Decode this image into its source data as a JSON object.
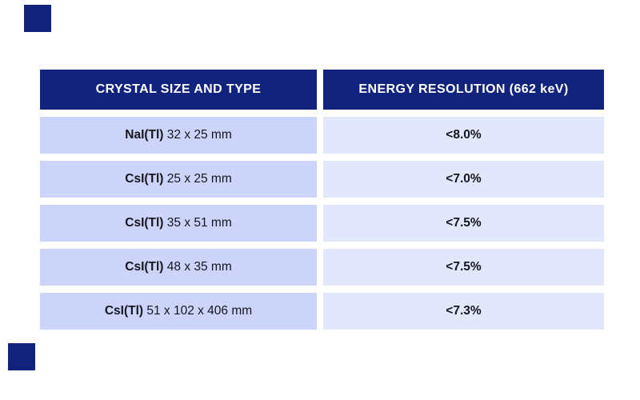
{
  "page": {
    "background": "#ffffff"
  },
  "decor": {
    "accent_color": "#12237d",
    "squares": [
      "top-left",
      "bottom-left"
    ]
  },
  "table": {
    "colors": {
      "header_bg": "#12237d",
      "header_text": "#ffffff",
      "left_cell_bg": "#ccd4f9",
      "right_cell_bg": "#e2e7fb",
      "row_text": "#16161f"
    },
    "headers": {
      "crystal": "CRYSTAL SIZE AND TYPE",
      "resolution": "ENERGY RESOLUTION (662 keV)"
    },
    "rows": [
      {
        "crystal_bold": "NaI(Tl)",
        "crystal_rest": " 32 x 25 mm",
        "resolution": "<8.0%"
      },
      {
        "crystal_bold": "CsI(Tl)",
        "crystal_rest": " 25 x 25 mm",
        "resolution": "<7.0%"
      },
      {
        "crystal_bold": "CsI(Tl)",
        "crystal_rest": " 35 x 51 mm",
        "resolution": "<7.5%"
      },
      {
        "crystal_bold": "CsI(Tl)",
        "crystal_rest": " 48 x 35 mm",
        "resolution": "<7.5%"
      },
      {
        "crystal_bold": "CsI(Tl)",
        "crystal_rest": " 51 x 102 x 406 mm",
        "resolution": "<7.3%"
      }
    ]
  }
}
